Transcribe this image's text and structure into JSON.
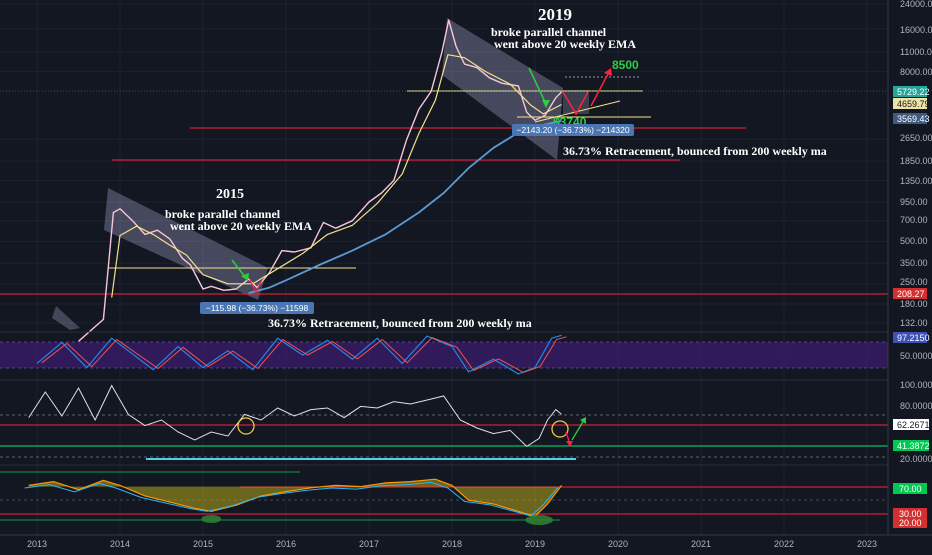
{
  "chart_data": [
    {
      "type": "line",
      "title": "",
      "xlabel": "",
      "ylabel": "",
      "scale": "log",
      "x_ticks": [
        "2013",
        "2014",
        "2015",
        "2016",
        "2017",
        "2018",
        "2019",
        "2020",
        "2021",
        "2022",
        "2023"
      ],
      "y_ticks": [
        "24000.00",
        "16000.00",
        "11000.00",
        "8000.00",
        "5729.22",
        "4659.79",
        "3569.43",
        "2650.00",
        "1850.00",
        "1350.00",
        "950.00",
        "700.00",
        "500.00",
        "350.00",
        "250.00",
        "208.27",
        "180.00",
        "132.00"
      ],
      "ylim": [
        132,
        24000
      ],
      "series": [
        {
          "values": [
            [
              2013.5,
              98
            ],
            [
              2013.8,
              140
            ],
            [
              2013.92,
              800
            ],
            [
              2014.0,
              850
            ],
            [
              2014.15,
              700
            ],
            [
              2014.3,
              560
            ],
            [
              2014.45,
              600
            ],
            [
              2014.6,
              520
            ],
            [
              2014.75,
              380
            ],
            [
              2014.85,
              340
            ],
            [
              2015.0,
              230
            ],
            [
              2015.1,
              240
            ],
            [
              2015.25,
              225
            ],
            [
              2015.4,
              230
            ],
            [
              2015.55,
              270
            ],
            [
              2015.65,
              235
            ],
            [
              2015.8,
              300
            ],
            [
              2015.95,
              430
            ],
            [
              2016.1,
              420
            ],
            [
              2016.3,
              450
            ],
            [
              2016.45,
              680
            ],
            [
              2016.6,
              620
            ],
            [
              2016.8,
              700
            ],
            [
              2017.0,
              950
            ],
            [
              2017.15,
              1100
            ],
            [
              2017.3,
              1350
            ],
            [
              2017.45,
              2600
            ],
            [
              2017.6,
              4300
            ],
            [
              2017.75,
              5800
            ],
            [
              2017.88,
              11000
            ],
            [
              2017.96,
              18500
            ],
            [
              2018.05,
              12000
            ],
            [
              2018.15,
              9000
            ],
            [
              2018.3,
              8500
            ],
            [
              2018.45,
              7200
            ],
            [
              2018.6,
              6600
            ],
            [
              2018.8,
              6300
            ],
            [
              2018.9,
              4100
            ],
            [
              2019.0,
              3600
            ],
            [
              2019.12,
              3900
            ],
            [
              2019.25,
              5200
            ],
            [
              2019.32,
              5730
            ]
          ]
        },
        {
          "values": [
            [
              2013.9,
              200
            ],
            [
              2014.0,
              550
            ],
            [
              2014.2,
              640
            ],
            [
              2014.4,
              560
            ],
            [
              2014.6,
              470
            ],
            [
              2014.8,
              400
            ],
            [
              2015.0,
              290
            ],
            [
              2015.3,
              250
            ],
            [
              2015.6,
              250
            ],
            [
              2015.9,
              320
            ],
            [
              2016.2,
              410
            ],
            [
              2016.5,
              560
            ],
            [
              2016.8,
              650
            ],
            [
              2017.1,
              930
            ],
            [
              2017.4,
              1500
            ],
            [
              2017.6,
              2900
            ],
            [
              2017.8,
              5000
            ],
            [
              2017.95,
              10500
            ],
            [
              2018.15,
              10000
            ],
            [
              2018.4,
              8000
            ],
            [
              2018.7,
              6500
            ],
            [
              2018.95,
              4600
            ],
            [
              2019.1,
              4000
            ],
            [
              2019.32,
              4660
            ]
          ]
        },
        {
          "values": [
            [
              2015.55,
              215
            ],
            [
              2015.8,
              235
            ],
            [
              2016.0,
              265
            ],
            [
              2016.4,
              340
            ],
            [
              2016.8,
              430
            ],
            [
              2017.2,
              560
            ],
            [
              2017.6,
              800
            ],
            [
              2017.9,
              1100
            ],
            [
              2018.2,
              1650
            ],
            [
              2018.5,
              2300
            ],
            [
              2018.8,
              2950
            ],
            [
              2019.0,
              3250
            ],
            [
              2019.32,
              3570
            ]
          ]
        }
      ],
      "annotations": {
        "label_2019": "2019",
        "label_2015": "2015",
        "note1_2019": "broke parallel channel",
        "note2_2019": "went above 20 weekly EMA",
        "note1_2015": "broke parallel channel",
        "note2_2015": "went above 20 weekly EMA",
        "measure_2019": "−2143.20 (−36.73%) −214320",
        "measure_2015": "−115.98 (−36.73%) −11598",
        "retrace_2019": "36.73% Retracement, bounced from 200 weekly ma",
        "retrace_2015": "36.73% Retracement, bounced from 200 weekly ma",
        "target_high": "8500",
        "target_low": "$3740"
      },
      "tags": {
        "price": "5729.22",
        "ema": "4659.79",
        "ma": "3569.43",
        "support": "208.27"
      },
      "colors": {
        "background": "#131722",
        "price": "#f7c6d6",
        "ema": "#f5e08a",
        "ma": "#5b9bd5",
        "channel": "#b3b3d9",
        "red_level": "#ff1f3f",
        "green": "#2ecc40",
        "tag_price": "#26a69a",
        "tag_ema": "#f0e2a3",
        "tag_ma": "#3d5a80",
        "tag_support": "#d32f2f"
      }
    },
    {
      "type": "line",
      "title": "",
      "xlabel": "",
      "ylabel": "",
      "y_ticks": [
        "50.0000"
      ],
      "tag": "97.2150",
      "colors": {
        "k": "#1e88e5",
        "d": "#ef5350",
        "band": "#3b1c6e"
      },
      "series": [
        {
          "values": [
            [
              2013,
              30
            ],
            [
              2013.3,
              80
            ],
            [
              2013.6,
              20
            ],
            [
              2013.9,
              90
            ],
            [
              2014.1,
              60
            ],
            [
              2014.4,
              15
            ],
            [
              2014.7,
              70
            ],
            [
              2015.0,
              20
            ],
            [
              2015.3,
              60
            ],
            [
              2015.6,
              15
            ],
            [
              2015.9,
              90
            ],
            [
              2016.2,
              50
            ],
            [
              2016.5,
              85
            ],
            [
              2016.8,
              40
            ],
            [
              2017.1,
              90
            ],
            [
              2017.4,
              30
            ],
            [
              2017.7,
              95
            ],
            [
              2018.0,
              70
            ],
            [
              2018.2,
              10
            ],
            [
              2018.5,
              40
            ],
            [
              2018.8,
              5
            ],
            [
              2019.0,
              20
            ],
            [
              2019.2,
              90
            ],
            [
              2019.32,
              97
            ]
          ]
        }
      ]
    },
    {
      "type": "line",
      "title": "",
      "xlabel": "",
      "ylabel": "",
      "y_ticks": [
        "100.0000",
        "80.0000",
        "20.0000"
      ],
      "tags": {
        "upper": "62.2671",
        "lower": "41.3872"
      },
      "colors": {
        "line": "#e0e0e0",
        "red_level": "#ff1f3f",
        "green_level": "#00e676",
        "teal": "#4dd0e1"
      },
      "series": [
        {
          "values": [
            [
              2012.9,
              58
            ],
            [
              2013.1,
              90
            ],
            [
              2013.3,
              60
            ],
            [
              2013.5,
              95
            ],
            [
              2013.7,
              55
            ],
            [
              2013.9,
              98
            ],
            [
              2014.1,
              62
            ],
            [
              2014.3,
              48
            ],
            [
              2014.5,
              55
            ],
            [
              2014.7,
              40
            ],
            [
              2014.9,
              30
            ],
            [
              2015.1,
              40
            ],
            [
              2015.3,
              35
            ],
            [
              2015.5,
              62
            ],
            [
              2015.7,
              55
            ],
            [
              2015.9,
              70
            ],
            [
              2016.1,
              60
            ],
            [
              2016.3,
              68
            ],
            [
              2016.5,
              70
            ],
            [
              2016.7,
              58
            ],
            [
              2016.9,
              72
            ],
            [
              2017.1,
              70
            ],
            [
              2017.3,
              78
            ],
            [
              2017.5,
              75
            ],
            [
              2017.7,
              80
            ],
            [
              2017.9,
              85
            ],
            [
              2018.1,
              55
            ],
            [
              2018.3,
              45
            ],
            [
              2018.5,
              38
            ],
            [
              2018.7,
              42
            ],
            [
              2018.9,
              22
            ],
            [
              2019.05,
              32
            ],
            [
              2019.15,
              55
            ],
            [
              2019.25,
              68
            ],
            [
              2019.32,
              62
            ]
          ]
        }
      ]
    },
    {
      "type": "area",
      "title": "",
      "xlabel": "",
      "ylabel": "",
      "y_ticks": [
        "70.00",
        "30.00",
        "20.00"
      ],
      "colors": {
        "line_a": "#ff9800",
        "line_b": "#29b6f6",
        "overbought": "#b5a51a",
        "oversold": "#2e7d32",
        "red_level": "#ff1f3f",
        "green_level": "#00c853"
      },
      "series": [
        {
          "values": [
            [
              2012.9,
              72
            ],
            [
              2013.2,
              78
            ],
            [
              2013.5,
              65
            ],
            [
              2013.8,
              80
            ],
            [
              2014.0,
              72
            ],
            [
              2014.3,
              55
            ],
            [
              2014.6,
              45
            ],
            [
              2014.9,
              35
            ],
            [
              2015.1,
              30
            ],
            [
              2015.4,
              40
            ],
            [
              2015.7,
              55
            ],
            [
              2016.0,
              62
            ],
            [
              2016.3,
              68
            ],
            [
              2016.6,
              72
            ],
            [
              2016.9,
              70
            ],
            [
              2017.2,
              76
            ],
            [
              2017.5,
              78
            ],
            [
              2017.8,
              82
            ],
            [
              2018.0,
              72
            ],
            [
              2018.2,
              48
            ],
            [
              2018.5,
              42
            ],
            [
              2018.8,
              30
            ],
            [
              2019.0,
              22
            ],
            [
              2019.15,
              42
            ],
            [
              2019.32,
              72
            ]
          ]
        }
      ]
    }
  ]
}
